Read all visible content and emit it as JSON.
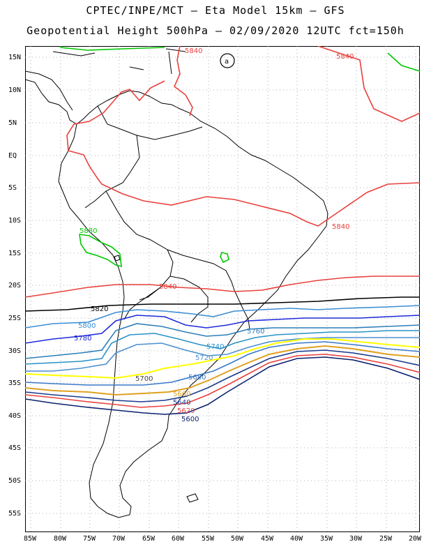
{
  "title": {
    "line1": "CPTEC/INPE/MCT –  Eta Model 15km – GFS",
    "line2": "Geopotential Height 500hPa – 02/09/2020 12UTC fct=150h"
  },
  "map": {
    "lat_range": [
      -58,
      16
    ],
    "lon_range": [
      -86,
      -20
    ],
    "lat_labels": [
      "15N",
      "10N",
      "5N",
      "EQ",
      "5S",
      "10S",
      "15S",
      "20S",
      "25S",
      "30S",
      "35S",
      "40S",
      "45S",
      "50S",
      "55S"
    ],
    "lon_labels": [
      "85W",
      "80W",
      "75W",
      "70W",
      "65W",
      "60W",
      "55W",
      "50W",
      "45W",
      "40W",
      "35W",
      "30W",
      "25W",
      "20W"
    ]
  },
  "contours": {
    "c5880_north": {
      "label": "5880",
      "color": "#00c800"
    },
    "c5880_bolivia": {
      "label": "5880",
      "color": "#00c800"
    },
    "c5840_north": {
      "label": "5840",
      "color": "#e8403c"
    },
    "c5840_east": {
      "label": "5840",
      "color": "#e8403c"
    },
    "c5840_mid": {
      "label": "5840",
      "color": "#e8403c"
    },
    "c5840_south": {
      "label": "5840",
      "color": "#e8403c"
    },
    "c5820_mid": {
      "label": "5820",
      "color": "#000000"
    },
    "c5800": {
      "label": "5800",
      "color": "#3a8ed4"
    },
    "c5780": {
      "label": "5780",
      "color": "#1e2ad8"
    },
    "c5760": {
      "label": "5760",
      "color": "#2c7fb8"
    },
    "c5740": {
      "label": "5740",
      "color": "#2892c8"
    },
    "c5720": {
      "label": "5720",
      "color": "#4b8fd0"
    },
    "c5700": {
      "label": "5700",
      "color": "#ffff00"
    },
    "c5680": {
      "label": "5680",
      "color": "#3a78c8"
    },
    "c5660": {
      "label": "5660",
      "color": "#e0a020"
    },
    "c5640": {
      "label": "5640",
      "color": "#1a3a8c"
    },
    "c5620": {
      "label": "5620",
      "color": "#e8403c"
    },
    "c5600": {
      "label": "5600",
      "color": "#0a1f6e"
    },
    "high_marker": "a"
  }
}
